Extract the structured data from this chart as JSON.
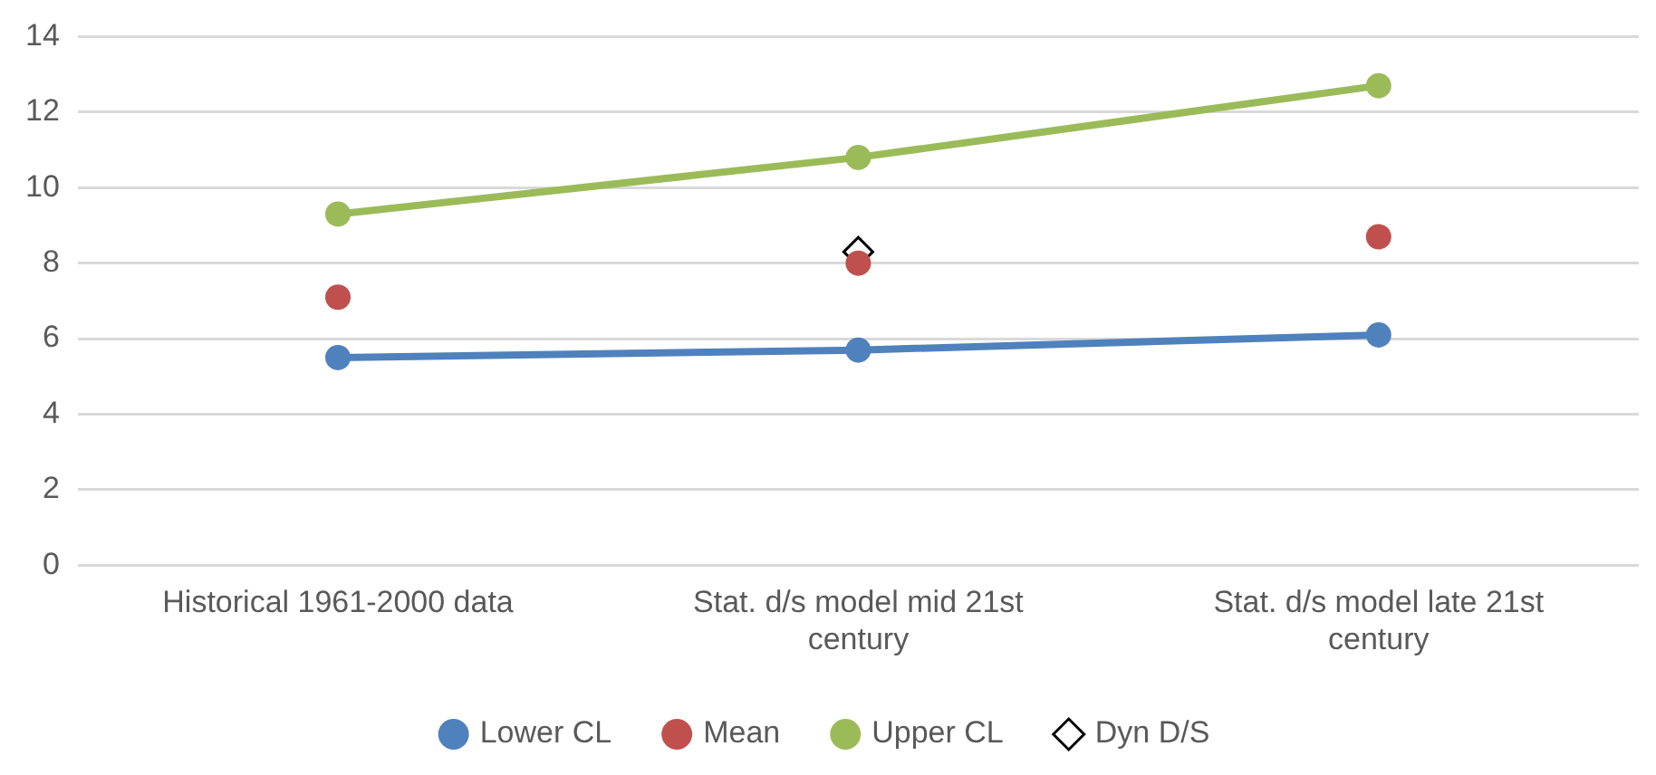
{
  "chart_data": {
    "type": "line",
    "categories": [
      "Historical 1961-2000 data",
      "Stat. d/s model mid 21st century",
      "Stat. d/s model late 21st century"
    ],
    "series": [
      {
        "name": "Lower CL",
        "color": "#4f81bd",
        "marker": "circle",
        "values": [
          5.5,
          5.7,
          6.1
        ]
      },
      {
        "name": "Mean",
        "type": "scatter",
        "color": "#c0504d",
        "marker": "circle",
        "values": [
          7.1,
          8.0,
          8.7
        ]
      },
      {
        "name": "Upper CL",
        "color": "#9bbb59",
        "marker": "circle",
        "values": [
          9.3,
          10.8,
          12.7
        ]
      },
      {
        "name": "Dyn D/S",
        "type": "scatter",
        "color": "#000000",
        "marker": "diamond",
        "values": [
          null,
          8.3,
          null
        ]
      }
    ],
    "ylim": [
      0,
      14
    ],
    "yticks": [
      0,
      2,
      4,
      6,
      8,
      10,
      12,
      14
    ],
    "grid": "y",
    "legend": "bottom"
  }
}
